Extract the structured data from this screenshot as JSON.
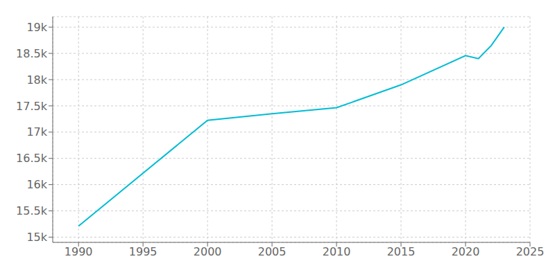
{
  "chart_data": {
    "type": "line",
    "x": [
      1990,
      2000,
      2005,
      2010,
      2015,
      2020,
      2021,
      2022,
      2023
    ],
    "values": [
      15211,
      17225,
      17350,
      17465,
      17900,
      18458,
      18400,
      18650,
      19000
    ],
    "color": "#00bcd4",
    "xlim": [
      1988,
      2025
    ],
    "ylim": [
      14900,
      19200
    ],
    "xticks": [
      1990,
      1995,
      2000,
      2005,
      2010,
      2015,
      2020,
      2025
    ],
    "yticks": [
      {
        "value": 15000,
        "label": "15k"
      },
      {
        "value": 15500,
        "label": "15.5k"
      },
      {
        "value": 16000,
        "label": "16k"
      },
      {
        "value": 16500,
        "label": "16.5k"
      },
      {
        "value": 17000,
        "label": "17k"
      },
      {
        "value": 17500,
        "label": "17.5k"
      },
      {
        "value": 18000,
        "label": "18k"
      },
      {
        "value": 18500,
        "label": "18.5k"
      },
      {
        "value": 19000,
        "label": "19k"
      }
    ],
    "grid": true
  }
}
